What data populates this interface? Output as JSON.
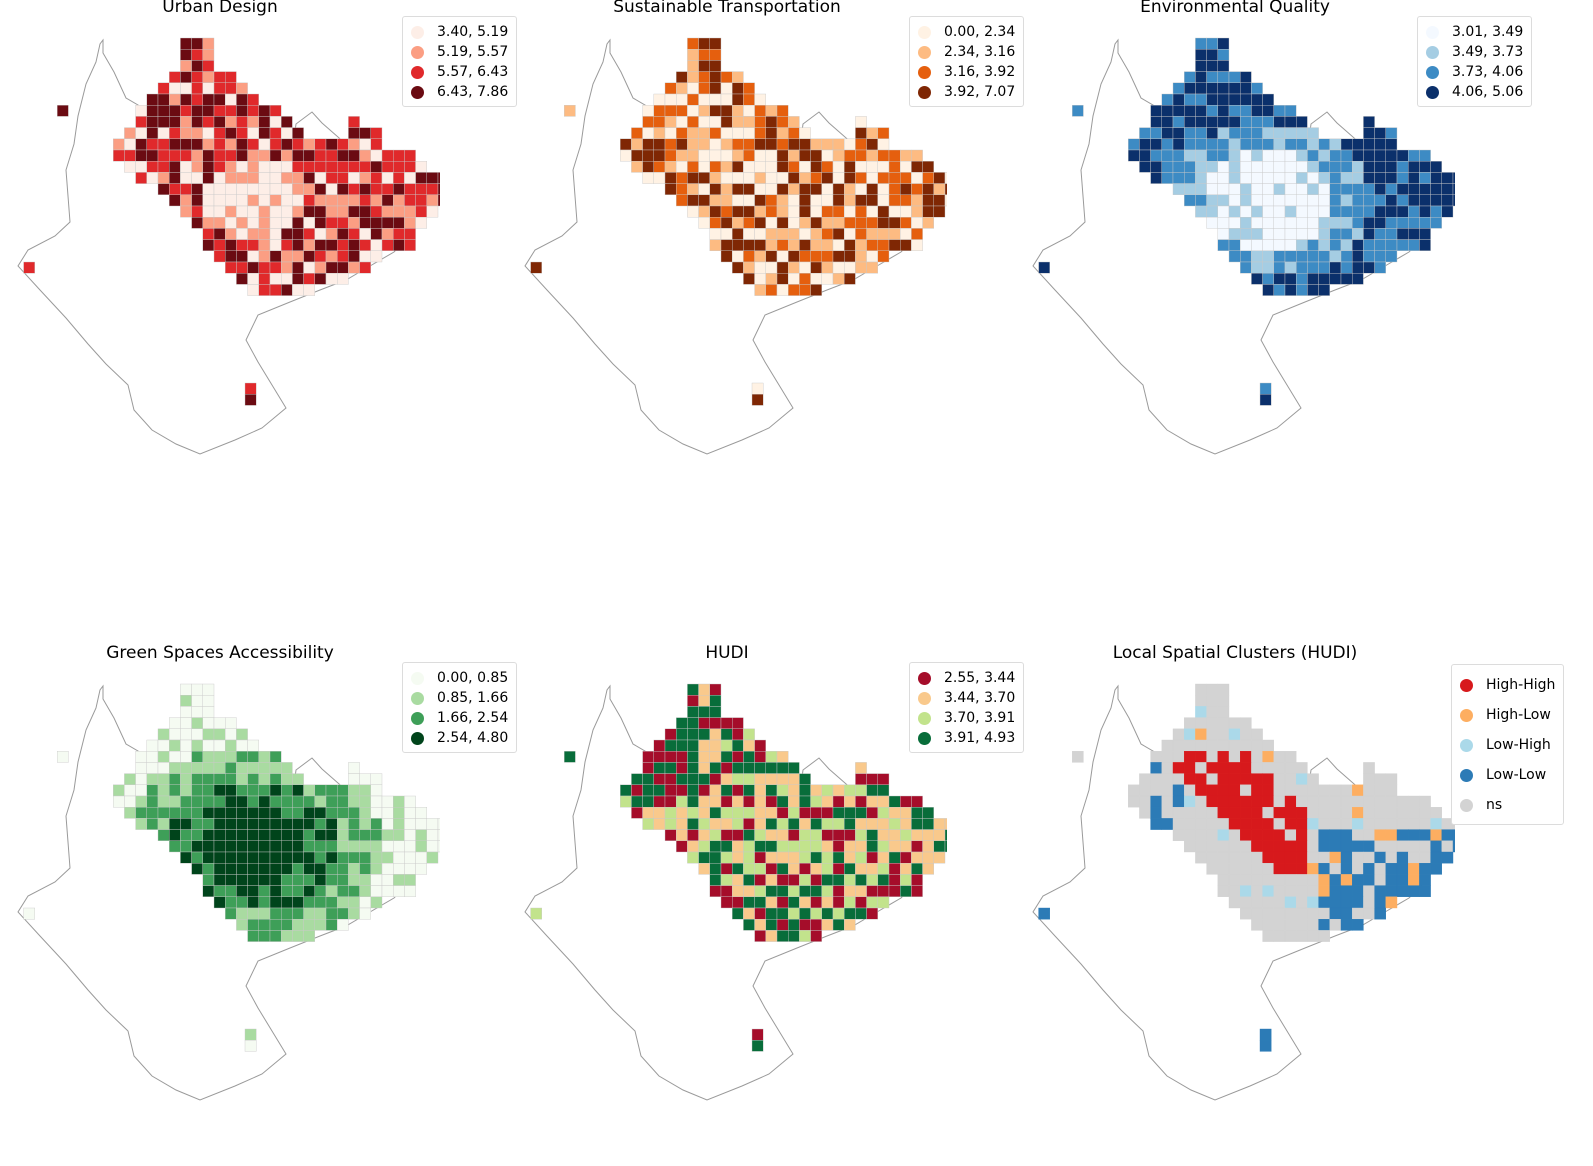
{
  "panels": [
    {
      "id": "urban-design",
      "title": "Urban Design",
      "legend": [
        {
          "label": "3.40, 5.19",
          "color": "#fdeee7"
        },
        {
          "label": "5.19, 5.57",
          "color": "#fb9e83"
        },
        {
          "label": "5.57, 6.43",
          "color": "#e0292b"
        },
        {
          "label": "6.43, 7.86",
          "color": "#6b0b12"
        }
      ]
    },
    {
      "id": "sustainable-transportation",
      "title": "Sustainable Transportation",
      "legend": [
        {
          "label": "0.00, 2.34",
          "color": "#fff2e4"
        },
        {
          "label": "2.34, 3.16",
          "color": "#fdbb82"
        },
        {
          "label": "3.16, 3.92",
          "color": "#e55f0e"
        },
        {
          "label": "3.92, 7.07",
          "color": "#7f2704"
        }
      ]
    },
    {
      "id": "environmental-quality",
      "title": "Environmental Quality",
      "legend": [
        {
          "label": "3.01, 3.49",
          "color": "#f4f9ff"
        },
        {
          "label": "3.49, 3.73",
          "color": "#a5cde3"
        },
        {
          "label": "3.73, 4.06",
          "color": "#3d8bc4"
        },
        {
          "label": "4.06, 5.06",
          "color": "#0b306b"
        }
      ]
    },
    {
      "id": "green-spaces-accessibility",
      "title": "Green Spaces Accessibility",
      "legend": [
        {
          "label": "0.00, 0.85",
          "color": "#f5fbf2"
        },
        {
          "label": "0.85, 1.66",
          "color": "#a9dba1"
        },
        {
          "label": "1.66, 2.54",
          "color": "#3e9f58"
        },
        {
          "label": "2.54, 4.80",
          "color": "#00441b"
        }
      ]
    },
    {
      "id": "hudi",
      "title": "HUDI",
      "legend": [
        {
          "label": "2.55, 3.44",
          "color": "#a50d2a"
        },
        {
          "label": "3.44, 3.70",
          "color": "#f9c98c"
        },
        {
          "label": "3.70, 3.91",
          "color": "#c2e38c"
        },
        {
          "label": "3.91, 4.93",
          "color": "#086d3a"
        }
      ]
    },
    {
      "id": "local-spatial-clusters",
      "title": "Local Spatial Clusters (HUDI)",
      "legend": [
        {
          "label": "High-High",
          "color": "#d7191c"
        },
        {
          "label": "High-Low",
          "color": "#fdae61"
        },
        {
          "label": "Low-High",
          "color": "#abd9e9"
        },
        {
          "label": "Low-Low",
          "color": "#2c7bb6"
        },
        {
          "label": "ns",
          "color": "#d3d3d3"
        }
      ]
    }
  ]
}
